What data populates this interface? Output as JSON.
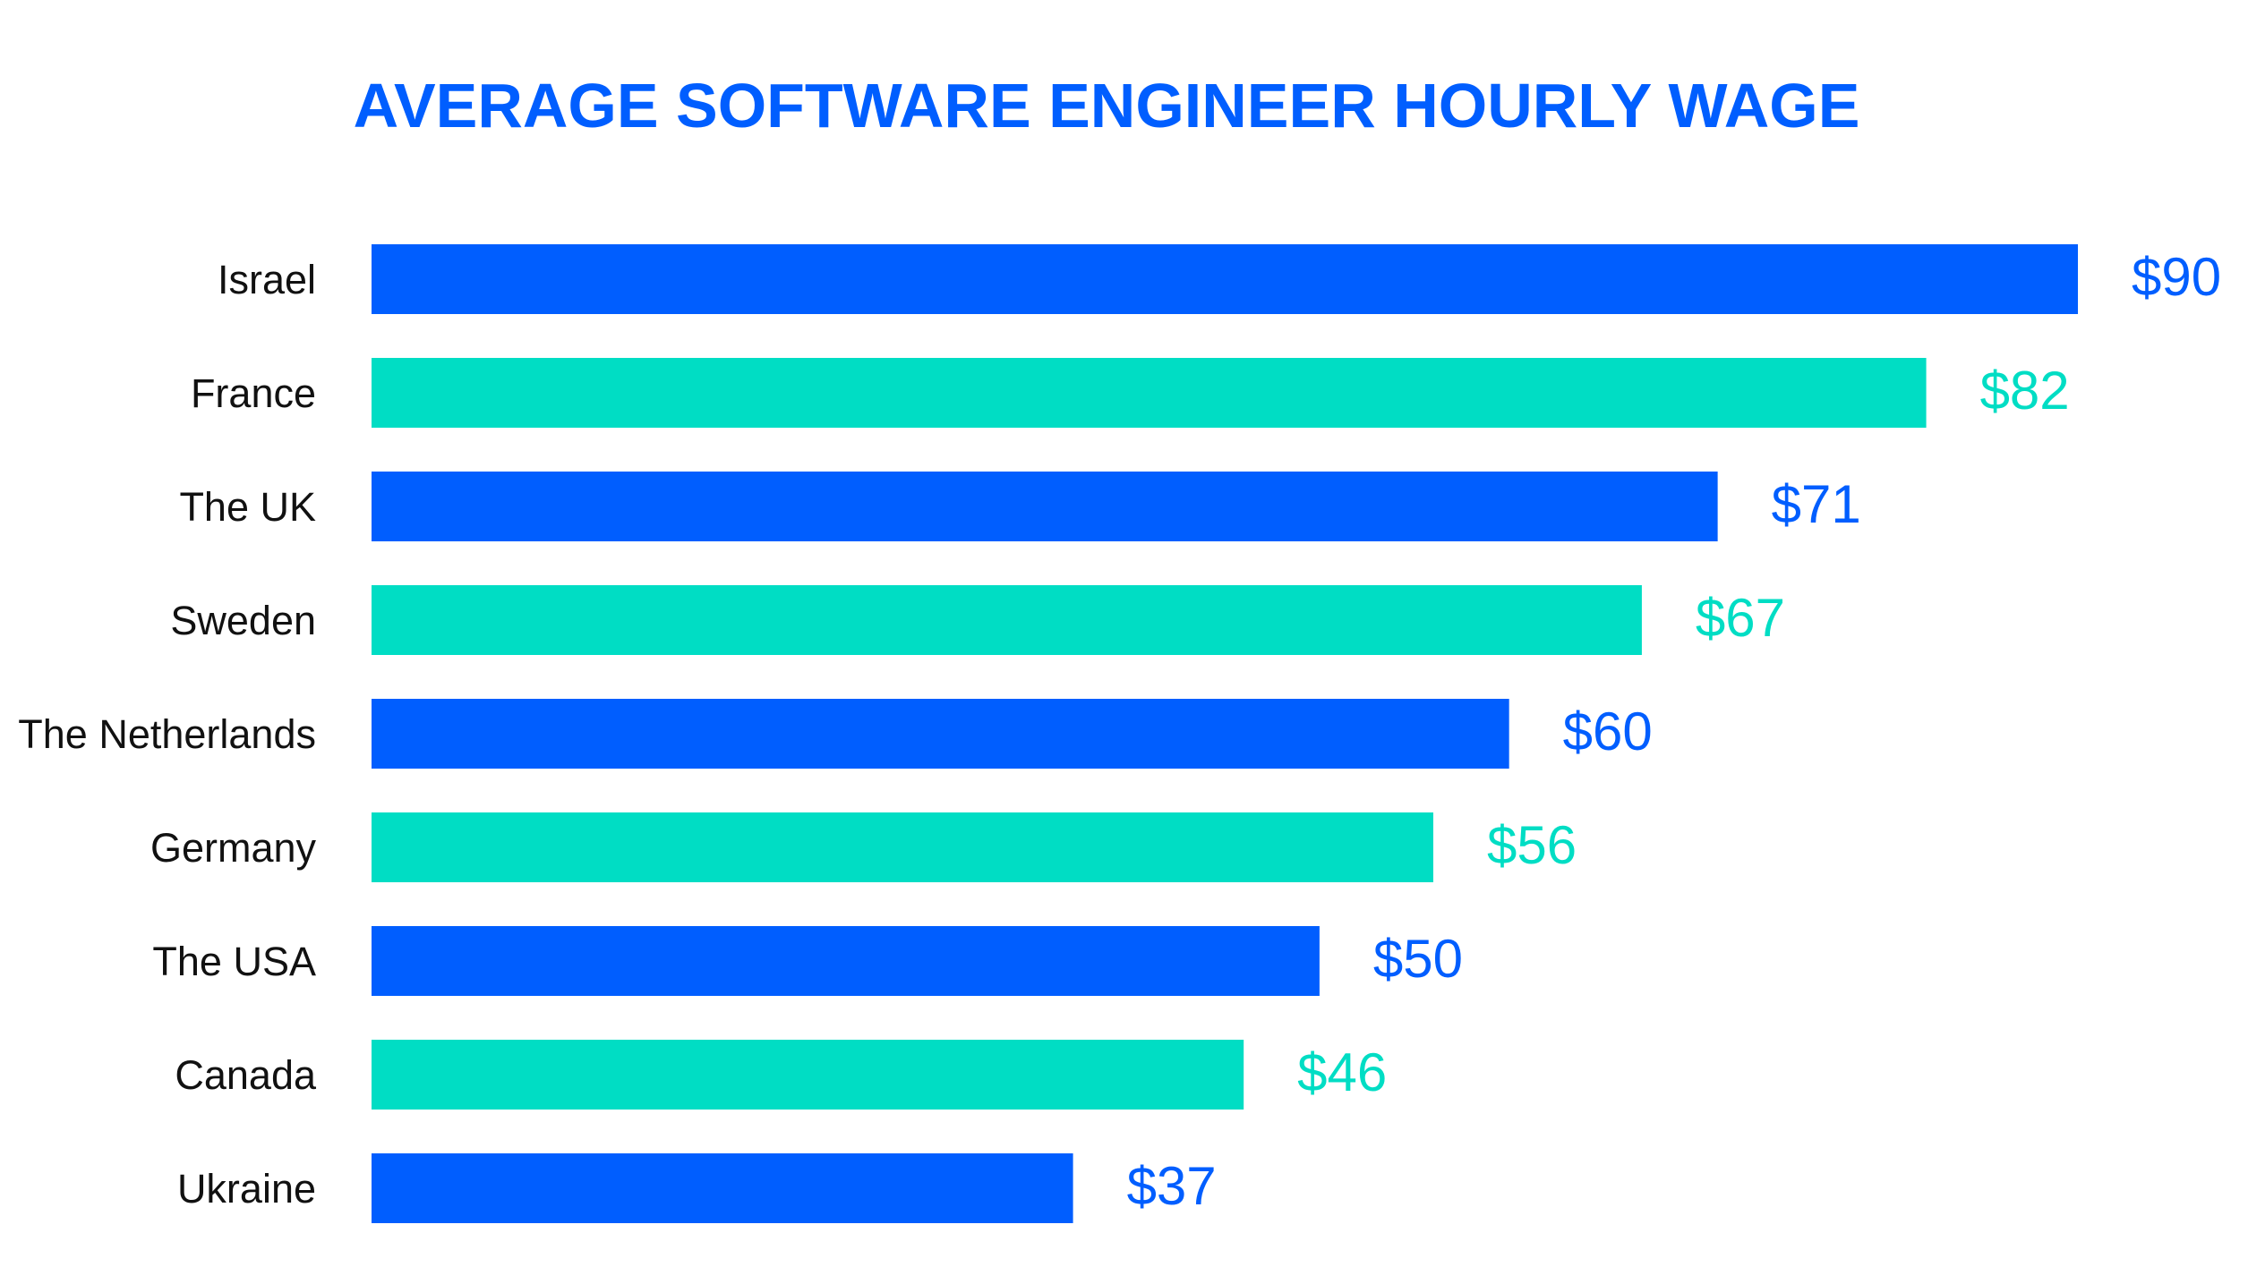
{
  "chart_data": {
    "type": "bar",
    "orientation": "horizontal",
    "title": "AVERAGE SOFTWARE ENGINEER HOURLY WAGE",
    "categories": [
      "Israel",
      "France",
      "The UK",
      "Sweden",
      "The Netherlands",
      "Germany",
      "The USA",
      "Canada",
      "Ukraine"
    ],
    "values": [
      90,
      82,
      71,
      67,
      60,
      56,
      50,
      46,
      37
    ],
    "value_labels": [
      "$90",
      "$82",
      "$71",
      "$67",
      "$60",
      "$56",
      "$50",
      "$46",
      "$37"
    ],
    "xlim": [
      0,
      90
    ],
    "grid": false,
    "colors": [
      "#005EFF",
      "#00DDC4"
    ]
  }
}
